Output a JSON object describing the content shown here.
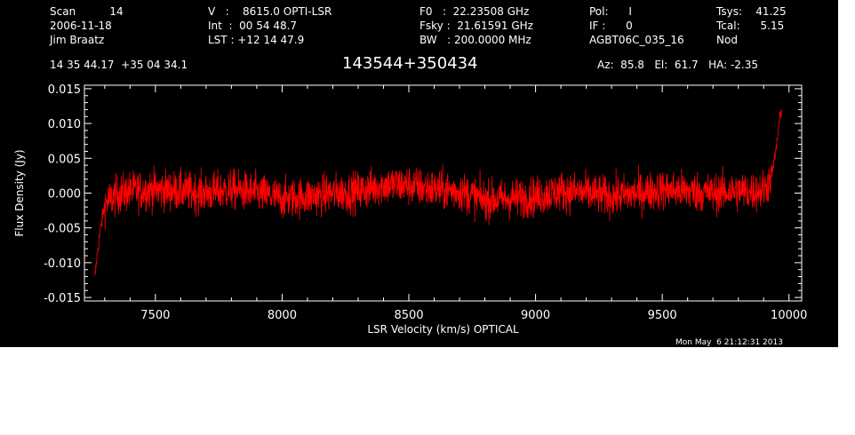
{
  "header": {
    "col1": [
      "Scan          14",
      "2006-11-18",
      "Jim Braatz"
    ],
    "col2": [
      "V   :    8615.0 OPTI-LSR",
      "Int  :  00 54 48.7",
      "LST : +12 14 47.9"
    ],
    "col3": [
      "F0   :  22.23508 GHz",
      "Fsky :  21.61591 GHz",
      "BW   : 200.0000 MHz"
    ],
    "col4": [
      "Pol:      I",
      "IF :      0",
      "AGBT06C_035_16"
    ],
    "col5": [
      "Tsys:    41.25",
      "Tcal:      5.15",
      "Nod"
    ],
    "coords": "14 35 44.17  +35 04 34.1",
    "source": "143544+350434",
    "pointing": "Az:  85.8   El:  61.7   HA: -2.35",
    "timestamp": "Mon May  6 21:12:31 2013"
  },
  "chart_data": {
    "type": "line",
    "xlabel": "LSR Velocity (km/s) OPTICAL",
    "ylabel": "Flux Density (Jy)",
    "xlim": [
      7220,
      10050
    ],
    "ylim": [
      -0.0155,
      0.0155
    ],
    "xticks": [
      7500,
      8000,
      8500,
      9000,
      9500,
      10000
    ],
    "yticks": [
      -0.015,
      -0.01,
      -0.005,
      0.0,
      0.005,
      0.01,
      0.015
    ],
    "ytick_labels": [
      "-0.015",
      "-0.010",
      "-0.005",
      "0.000",
      "0.005",
      "0.010",
      "0.015"
    ],
    "series": [
      {
        "color": "#ff0000",
        "x": [
          7260,
          7270,
          7280,
          7300,
          7350,
          7400,
          7500,
          7600,
          7700,
          7800,
          7900,
          8000,
          8100,
          8200,
          8300,
          8400,
          8500,
          8600,
          8700,
          8800,
          8900,
          9000,
          9100,
          9200,
          9300,
          9400,
          9500,
          9600,
          9700,
          9800,
          9850,
          9900,
          9920,
          9940,
          9960,
          9970
        ],
        "y": [
          -0.0125,
          -0.009,
          -0.006,
          -0.0015,
          -0.0002,
          0.0003,
          0.0005,
          0.0003,
          0.0,
          0.0005,
          0.0,
          -0.0008,
          -0.0005,
          0.0,
          0.0002,
          0.0012,
          0.0011,
          0.0005,
          0.0003,
          -0.001,
          -0.0008,
          -0.0005,
          0.0003,
          0.0,
          -0.0005,
          0.0,
          0.0005,
          0.0003,
          0.0,
          0.0003,
          0.0002,
          0.0005,
          0.0015,
          0.004,
          0.0095,
          0.012
        ],
        "noise_sigma": 0.0024
      }
    ]
  }
}
